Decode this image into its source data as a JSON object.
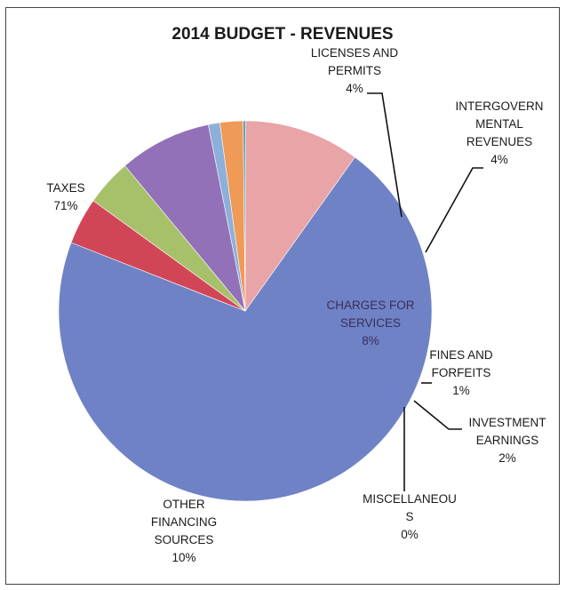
{
  "chart_data": {
    "type": "pie",
    "title": "2014 BUDGET - REVENUES",
    "slices": [
      {
        "label_lines": [
          "TAXES"
        ],
        "percent_label": "71%",
        "value": 71,
        "color": "#6f82c6"
      },
      {
        "label_lines": [
          "LICENSES AND",
          "PERMITS"
        ],
        "percent_label": "4%",
        "value": 4,
        "color": "#d14657"
      },
      {
        "label_lines": [
          "INTERGOVERN",
          "MENTAL",
          "REVENUES"
        ],
        "percent_label": "4%",
        "value": 4,
        "color": "#a7c06a"
      },
      {
        "label_lines": [
          "CHARGES FOR",
          "SERVICES"
        ],
        "percent_label": "8%",
        "value": 8,
        "color": "#9271b8"
      },
      {
        "label_lines": [
          "FINES AND",
          "FORFEITS"
        ],
        "percent_label": "1%",
        "value": 1,
        "color": "#8cb0da"
      },
      {
        "label_lines": [
          "INVESTMENT",
          "EARNINGS"
        ],
        "percent_label": "2%",
        "value": 2,
        "color": "#ef9a57"
      },
      {
        "label_lines": [
          "MISCELLANEOU",
          "S"
        ],
        "percent_label": "0%",
        "value": 0.2,
        "color": "#4f9fb4"
      },
      {
        "label_lines": [
          "OTHER",
          "FINANCING",
          "SOURCES"
        ],
        "percent_label": "10%",
        "value": 10,
        "color": "#e8a4a6"
      }
    ]
  }
}
